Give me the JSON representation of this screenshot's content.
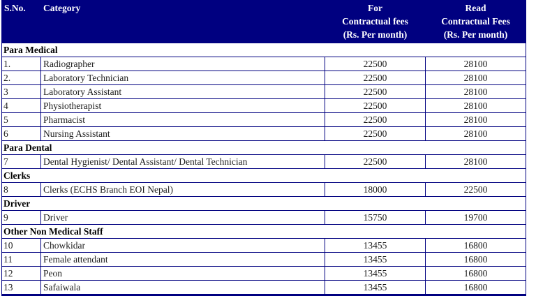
{
  "table": {
    "accent_color": "#000080",
    "border_color": "#000080",
    "header": {
      "sno": "S.No.",
      "category": "Category",
      "for_fees": {
        "l1": "For",
        "l2": "Contractual fees",
        "l3": "(Rs. Per month)"
      },
      "read_fees": {
        "l1": "Read",
        "l2": "Contractual Fees",
        "l3": "(Rs. Per month)"
      }
    },
    "sections": [
      {
        "title": "Para Medical",
        "rows": [
          {
            "sno": "1.",
            "category": "Radiographer",
            "for_fee": "22500",
            "read_fee": "28100"
          },
          {
            "sno": "2.",
            "category": "Laboratory Technician",
            "for_fee": "22500",
            "read_fee": "28100"
          },
          {
            "sno": "3",
            "category": "Laboratory Assistant",
            "for_fee": "22500",
            "read_fee": "28100"
          },
          {
            "sno": "4",
            "category": "Physiotherapist",
            "for_fee": "22500",
            "read_fee": "28100"
          },
          {
            "sno": "5",
            "category": "Pharmacist",
            "for_fee": "22500",
            "read_fee": "28100"
          },
          {
            "sno": "6",
            "category": "Nursing Assistant",
            "for_fee": "22500",
            "read_fee": "28100"
          }
        ]
      },
      {
        "title": "Para Dental",
        "rows": [
          {
            "sno": "7",
            "category": "Dental Hygienist/ Dental Assistant/ Dental Technician",
            "for_fee": "22500",
            "read_fee": "28100"
          }
        ]
      },
      {
        "title": "Clerks",
        "rows": [
          {
            "sno": "8",
            "category": "Clerks (ECHS Branch EOI Nepal)",
            "for_fee": "18000",
            "read_fee": "22500"
          }
        ]
      },
      {
        "title": "Driver",
        "rows": [
          {
            "sno": "9",
            "category": "Driver",
            "for_fee": "15750",
            "read_fee": "19700"
          }
        ]
      },
      {
        "title": "Other Non Medical Staff",
        "rows": [
          {
            "sno": "10",
            "category": "Chowkidar",
            "for_fee": "13455",
            "read_fee": "16800"
          },
          {
            "sno": "11",
            "category": "Female attendant",
            "for_fee": "13455",
            "read_fee": "16800"
          },
          {
            "sno": "12",
            "category": "Peon",
            "for_fee": "13455",
            "read_fee": "16800"
          },
          {
            "sno": "13",
            "category": "Safaiwala",
            "for_fee": "13455",
            "read_fee": "16800"
          }
        ]
      }
    ]
  }
}
